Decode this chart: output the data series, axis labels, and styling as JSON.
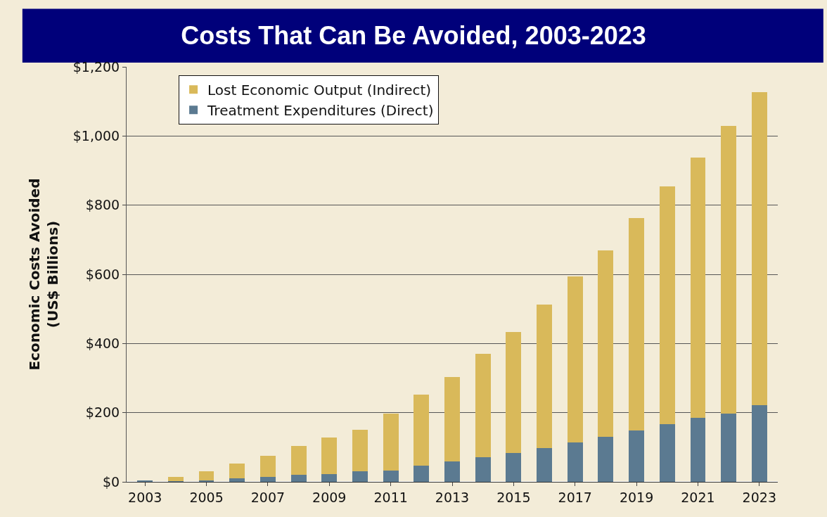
{
  "chart_data": {
    "type": "bar",
    "title": "Costs That Can Be Avoided, 2003-2023",
    "ylabel": "Economic Costs Avoided\n(US$ Billions)",
    "categories": [
      "2003",
      null,
      "2005",
      null,
      "2007",
      null,
      "2009",
      null,
      "2011",
      null,
      "2013",
      null,
      "2015",
      null,
      "2017",
      null,
      "2019",
      null,
      "2021",
      null,
      "2023"
    ],
    "stacked": true,
    "series": [
      {
        "name": "Treatment Expenditures (Direct)",
        "color": "#5b7a91",
        "values": [
          3,
          2,
          5,
          10,
          15,
          20,
          22,
          30,
          33,
          47,
          58,
          71,
          84,
          97,
          114,
          131,
          148,
          166,
          185,
          198,
          221
        ]
      },
      {
        "name": "Lost Economic Output (Indirect)",
        "color": "#d9b95a",
        "values": [
          0,
          13,
          25,
          42,
          60,
          83,
          107,
          120,
          165,
          205,
          245,
          299,
          350,
          415,
          479,
          538,
          615,
          688,
          753,
          832,
          906
        ]
      }
    ],
    "ylim": [
      0,
      1200
    ],
    "yticks": [
      {
        "value": 0,
        "label": "$0"
      },
      {
        "value": 200,
        "label": "$200"
      },
      {
        "value": 400,
        "label": "$400"
      },
      {
        "value": 600,
        "label": "$600"
      },
      {
        "value": 800,
        "label": "$800"
      },
      {
        "value": 1000,
        "label": "$1,000"
      },
      {
        "value": 1200,
        "label": "$1,200"
      }
    ],
    "grid": "y",
    "legend": "top left"
  }
}
